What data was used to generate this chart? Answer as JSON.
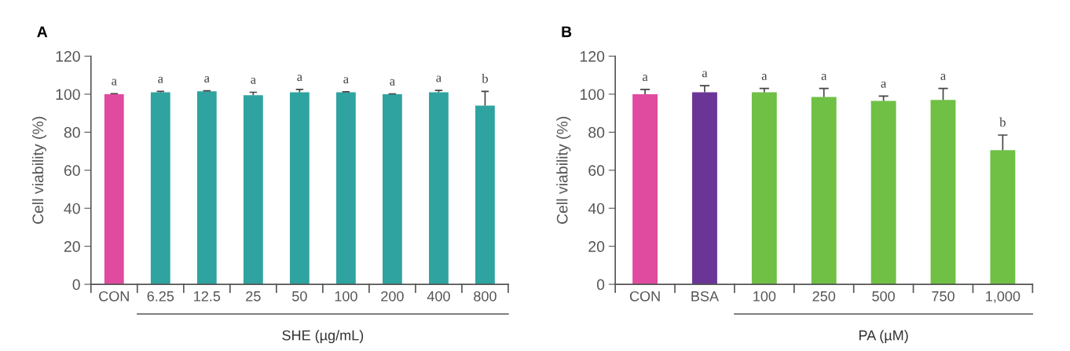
{
  "chart_data": [
    {
      "type": "bar",
      "title": "A",
      "xlabel": "SHE (µg/mL)",
      "ylabel": "Cell viability (%)",
      "categories": [
        "CON",
        "6.25",
        "12.5",
        "25",
        "50",
        "100",
        "200",
        "400",
        "800"
      ],
      "values": [
        100,
        101,
        101.5,
        99.5,
        101,
        101,
        100,
        101,
        94
      ],
      "errors": [
        [
          100,
          100.3
        ],
        [
          101,
          101.5
        ],
        [
          101.5,
          101.8
        ],
        [
          99.5,
          101
        ],
        [
          101,
          102.5
        ],
        [
          101,
          101.3
        ],
        [
          100,
          100.2
        ],
        [
          101,
          102
        ],
        [
          94,
          101.5
        ]
      ],
      "colors": [
        "#e04ba0",
        "#2fa3a0",
        "#2fa3a0",
        "#2fa3a0",
        "#2fa3a0",
        "#2fa3a0",
        "#2fa3a0",
        "#2fa3a0",
        "#2fa3a0"
      ],
      "ylim": [
        0,
        120
      ],
      "yticks": [
        0,
        20,
        40,
        60,
        80,
        100,
        120
      ],
      "grid": false,
      "annotations": [
        "a",
        "a",
        "a",
        "a",
        "a",
        "a",
        "a",
        "a",
        "b"
      ]
    },
    {
      "type": "bar",
      "title": "B",
      "xlabel": "PA (µM)",
      "ylabel": "Cell viability (%)",
      "categories": [
        "CON",
        "BSA",
        "100",
        "250",
        "500",
        "750",
        "1,000"
      ],
      "values": [
        100,
        101,
        101,
        98.5,
        96.5,
        97,
        70.5
      ],
      "errors": [
        [
          100,
          102.5
        ],
        [
          101,
          104.5
        ],
        [
          101,
          103
        ],
        [
          98.5,
          103
        ],
        [
          96.5,
          99
        ],
        [
          97,
          103
        ],
        [
          70.5,
          78.5
        ]
      ],
      "colors": [
        "#e04ba0",
        "#6b3598",
        "#6fc045",
        "#6fc045",
        "#6fc045",
        "#6fc045",
        "#6fc045"
      ],
      "ylim": [
        0,
        120
      ],
      "yticks": [
        0,
        20,
        40,
        60,
        80,
        100,
        120
      ],
      "grid": false,
      "annotations": [
        "a",
        "a",
        "a",
        "a",
        "a",
        "a",
        "b"
      ]
    }
  ]
}
